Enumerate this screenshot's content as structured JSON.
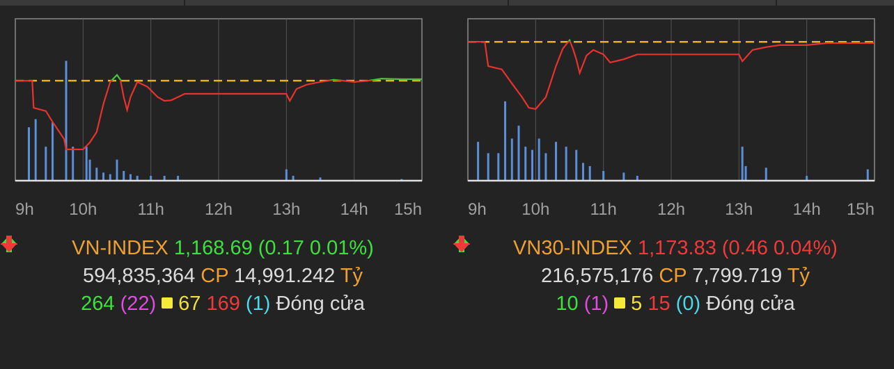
{
  "chart_data": [
    {
      "type": "line",
      "xlim": [
        9,
        15
      ],
      "ylim": [
        1150,
        1180
      ],
      "grid": true,
      "xticks": [
        {
          "value": 9,
          "label": "9h"
        },
        {
          "value": 10,
          "label": "10h"
        },
        {
          "value": 11,
          "label": "11h"
        },
        {
          "value": 12,
          "label": "12h"
        },
        {
          "value": 13,
          "label": "13h"
        },
        {
          "value": 14,
          "label": "14h"
        },
        {
          "value": 15,
          "label": "15h"
        }
      ],
      "reference": {
        "value": 1168.52,
        "color": "#e6b422"
      },
      "series": [
        {
          "color": "#e8322e",
          "up_color": "#3ec83e",
          "x": [
            9.0,
            9.25,
            9.27,
            9.45,
            9.55,
            9.72,
            9.75,
            10.0,
            10.1,
            10.2,
            10.3,
            10.4,
            10.5,
            10.55,
            10.6,
            10.65,
            10.7,
            10.8,
            10.95,
            11.1,
            11.2,
            11.3,
            11.5,
            12.0,
            13.0,
            13.05,
            13.15,
            13.3,
            13.5,
            13.7,
            14.0,
            14.2,
            14.4,
            14.7,
            15.0
          ],
          "values": [
            1168.5,
            1168.5,
            1163.5,
            1162.9,
            1160.9,
            1157.7,
            1155.8,
            1155.8,
            1157.1,
            1159.0,
            1164.2,
            1168.3,
            1169.6,
            1168.7,
            1165.5,
            1163.1,
            1165.5,
            1168.3,
            1167.4,
            1165.5,
            1164.8,
            1164.9,
            1166.1,
            1166.1,
            1166.1,
            1164.8,
            1167.0,
            1167.8,
            1168.3,
            1168.7,
            1168.3,
            1168.5,
            1168.9,
            1168.8,
            1168.8
          ]
        }
      ],
      "volume": {
        "color": "#5b8fd8",
        "ylim": [
          0,
          100
        ],
        "x": [
          9.2,
          9.3,
          9.45,
          9.55,
          9.75,
          9.85,
          10.05,
          10.1,
          10.2,
          10.3,
          10.4,
          10.5,
          10.6,
          10.7,
          10.8,
          11.0,
          11.2,
          11.4,
          13.0,
          13.1,
          13.5,
          14.7
        ],
        "values": [
          33,
          38,
          21,
          36,
          74,
          21,
          21,
          13,
          8,
          5,
          4,
          13,
          6,
          4,
          3,
          3,
          3,
          3,
          7,
          3,
          2,
          1
        ]
      },
      "summary": {
        "index_name": "VN-INDEX",
        "index_value": "1,168.69",
        "change": "(0.17 0.01%)",
        "volume": "594,835,364",
        "volume_unit": "CP",
        "value": "14,991.242",
        "value_unit": "Tỷ",
        "advances": "264",
        "ceiling": "(22)",
        "unchanged": "67",
        "declines": "169",
        "floor": "(1)",
        "status": "Đóng cửa",
        "direction": "up"
      }
    },
    {
      "type": "line",
      "xlim": [
        9,
        15
      ],
      "ylim": [
        1140,
        1180
      ],
      "grid": true,
      "xticks": [
        {
          "value": 9,
          "label": "9h"
        },
        {
          "value": 10,
          "label": "10h"
        },
        {
          "value": 11,
          "label": "11h"
        },
        {
          "value": 12,
          "label": "12h"
        },
        {
          "value": 13,
          "label": "13h"
        },
        {
          "value": 14,
          "label": "14h"
        },
        {
          "value": 15,
          "label": "15h"
        }
      ],
      "reference": {
        "value": 1174.29,
        "color": "#e6b422"
      },
      "series": [
        {
          "color": "#e8322e",
          "up_color": "#3ec83e",
          "x": [
            9.0,
            9.25,
            9.3,
            9.5,
            9.65,
            9.8,
            9.9,
            10.0,
            10.15,
            10.3,
            10.4,
            10.5,
            10.55,
            10.6,
            10.65,
            10.75,
            10.85,
            11.0,
            11.1,
            11.3,
            11.5,
            13.0,
            13.05,
            13.2,
            13.4,
            13.6,
            14.0,
            14.3,
            14.6,
            15.0
          ],
          "values": [
            1174.3,
            1174.3,
            1168.3,
            1167.5,
            1164.0,
            1160.6,
            1158.0,
            1157.7,
            1160.6,
            1168.3,
            1172.6,
            1174.7,
            1172.6,
            1170.0,
            1166.6,
            1170.9,
            1172.3,
            1171.2,
            1169.2,
            1170.0,
            1171.2,
            1171.2,
            1169.5,
            1172.3,
            1173.0,
            1173.5,
            1173.5,
            1174.0,
            1174.0,
            1174.0
          ]
        }
      ],
      "volume": {
        "color": "#5b8fd8",
        "ylim": [
          0,
          100
        ],
        "x": [
          9.15,
          9.3,
          9.45,
          9.55,
          9.65,
          9.75,
          9.85,
          9.95,
          10.05,
          10.15,
          10.3,
          10.45,
          10.6,
          10.7,
          10.8,
          11.0,
          11.3,
          11.5,
          13.05,
          13.1,
          13.4,
          14.0,
          14.9
        ],
        "values": [
          24,
          17,
          17,
          49,
          26,
          34,
          21,
          19,
          26,
          17,
          24,
          21,
          19,
          11,
          9,
          6,
          5,
          3,
          21,
          9,
          8,
          3,
          7
        ]
      },
      "summary": {
        "index_name": "VN30-INDEX",
        "index_value": "1,173.83",
        "change": "(0.46 0.04%)",
        "volume": "216,575,176",
        "volume_unit": "CP",
        "value": "7,799.719",
        "value_unit": "Tỷ",
        "advances": "10",
        "ceiling": "(1)",
        "unchanged": "5",
        "declines": "15",
        "floor": "(0)",
        "status": "Đóng cửa",
        "direction": "down"
      }
    }
  ]
}
